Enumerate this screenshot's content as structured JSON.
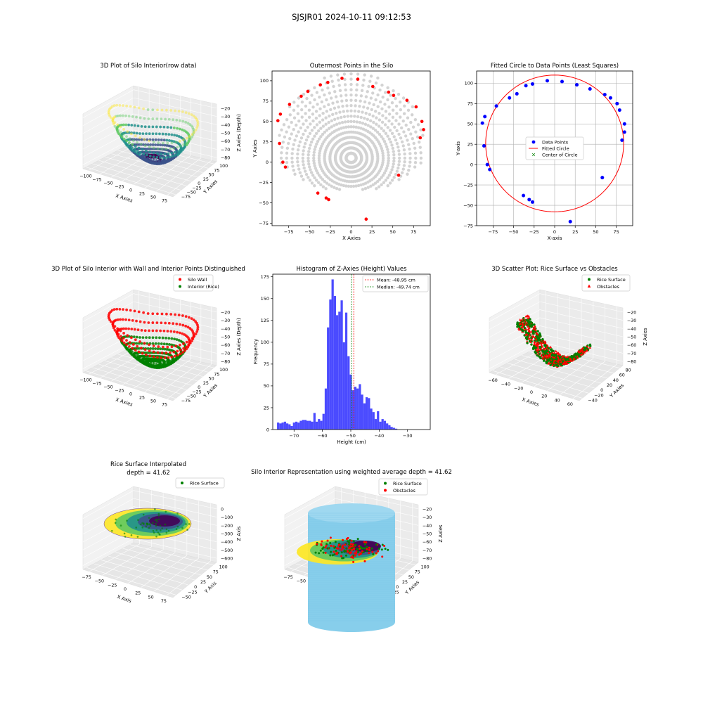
{
  "figure_title": "SJSJR01 2024-10-11 09:12:53",
  "colors": {
    "silo_wall": "#ff0000",
    "rice": "#008000",
    "data_points": "#0000ff",
    "interior_gray": "#d3d3d3",
    "silo_body": "#87ceeb",
    "hist_bar": "#4b4bff"
  },
  "chart_data": [
    {
      "id": "p1",
      "type": "scatter3d",
      "title": "3D Plot of Silo Interior(row data)",
      "xlabel": "X Axies",
      "ylabel": "Y Axies",
      "zlabel": "Z Axies (Depth)",
      "xticks": [
        "−100",
        "−75",
        "−50",
        "−25",
        "0",
        "25",
        "50",
        "75"
      ],
      "yticks": [
        "−75",
        "−50",
        "−25",
        "0",
        "25",
        "50",
        "75",
        "100"
      ],
      "zticks": [
        "−20",
        "−30",
        "−40",
        "−50",
        "−60",
        "−70",
        "−80"
      ]
    },
    {
      "id": "p2",
      "type": "scatter",
      "title": "Outermost Points in the Silo",
      "xlabel": "X Axies",
      "ylabel": "Y Axies",
      "xlim": [
        -95,
        95
      ],
      "ylim": [
        -78,
        112
      ],
      "xticks": [
        -75,
        -50,
        -25,
        0,
        25,
        50,
        75
      ],
      "yticks": [
        -75,
        -50,
        -25,
        0,
        25,
        50,
        75,
        100
      ],
      "outer_points": [
        [
          -88,
          51
        ],
        [
          -85,
          59
        ],
        [
          -86,
          23
        ],
        [
          -82,
          0
        ],
        [
          -79,
          -6
        ],
        [
          -74,
          71
        ],
        [
          -60,
          81
        ],
        [
          -52,
          87
        ],
        [
          -37,
          95
        ],
        [
          -28,
          98
        ],
        [
          -11,
          103
        ],
        [
          8,
          102
        ],
        [
          26,
          93
        ],
        [
          45,
          86
        ],
        [
          51,
          82
        ],
        [
          67,
          76
        ],
        [
          78,
          68
        ],
        [
          85,
          50
        ],
        [
          87,
          40
        ],
        [
          83,
          30
        ],
        [
          57,
          -16
        ],
        [
          18,
          -70
        ],
        [
          -30,
          -44
        ],
        [
          -27,
          -46
        ],
        [
          -40,
          -38
        ]
      ]
    },
    {
      "id": "p3",
      "type": "scatter",
      "title": "Fitted Circle to Data Points (Least Squares)",
      "xlabel": "X-axis",
      "ylabel": "Y-axis",
      "xlim": [
        -95,
        95
      ],
      "ylim": [
        -75,
        115
      ],
      "xticks": [
        -75,
        -50,
        -25,
        0,
        25,
        50,
        75
      ],
      "yticks": [
        -75,
        -50,
        -25,
        0,
        25,
        50,
        75,
        100
      ],
      "points": [
        [
          -88,
          51
        ],
        [
          -85,
          59
        ],
        [
          -86,
          23
        ],
        [
          -82,
          0
        ],
        [
          -79,
          -6
        ],
        [
          -71,
          72
        ],
        [
          -55,
          82
        ],
        [
          -46,
          87
        ],
        [
          -35,
          97
        ],
        [
          -27,
          99
        ],
        [
          -9,
          103
        ],
        [
          9,
          102
        ],
        [
          27,
          98
        ],
        [
          43,
          93
        ],
        [
          61,
          86
        ],
        [
          68,
          82
        ],
        [
          76,
          75
        ],
        [
          79,
          67
        ],
        [
          85,
          50
        ],
        [
          85,
          40
        ],
        [
          82,
          30
        ],
        [
          58,
          -16
        ],
        [
          19,
          -70
        ],
        [
          -38,
          -38
        ],
        [
          -31,
          -43
        ],
        [
          -27,
          -46
        ]
      ],
      "circle": {
        "cx": 0,
        "cy": 26,
        "r": 84
      },
      "legend": [
        "Data Points",
        "Fitted Circle",
        "Center of Circle"
      ]
    },
    {
      "id": "p4",
      "type": "scatter3d",
      "title": "3D Plot of Silo Interior with Wall and Interior Points Distinguished",
      "xlabel": "X Axies",
      "ylabel": "Y Axies",
      "zlabel": "Z Axies (Depth)",
      "xticks": [
        "−100",
        "−75",
        "−50",
        "−25",
        "0",
        "25",
        "50",
        "75"
      ],
      "yticks": [
        "−75",
        "−50",
        "−25",
        "0",
        "25",
        "50",
        "75",
        "100"
      ],
      "zticks": [
        "−20",
        "−30",
        "−40",
        "−50",
        "−60",
        "−70",
        "−80"
      ],
      "legend": [
        "Silo Wall",
        "Interior (Rice)"
      ]
    },
    {
      "id": "p5",
      "type": "bar",
      "title": "Histogram of Z-Axies (Height) Values",
      "xlabel": "Height (cm)",
      "ylabel": "Frequency",
      "xlim": [
        -77.5,
        -22
      ],
      "ylim": [
        0,
        178
      ],
      "xticks": [
        -70,
        -60,
        -50,
        -40,
        -30
      ],
      "yticks": [
        0,
        25,
        50,
        75,
        100,
        125,
        150,
        175
      ],
      "bin_start": -76,
      "bin_width": 0.8,
      "values": [
        8,
        7,
        8,
        9,
        7,
        6,
        4,
        8,
        9,
        8,
        10,
        11,
        11,
        10,
        10,
        9,
        19,
        9,
        12,
        10,
        18,
        47,
        117,
        149,
        172,
        153,
        131,
        135,
        148,
        100,
        134,
        84,
        63,
        45,
        49,
        47,
        52,
        40,
        30,
        37,
        36,
        24,
        20,
        12,
        21,
        9,
        12,
        10,
        7,
        5,
        3,
        2,
        1
      ],
      "mean": -48.95,
      "median": -49.74,
      "legend": [
        "Mean: -48.95 cm",
        "Median: -49.74 cm"
      ]
    },
    {
      "id": "p6",
      "type": "scatter3d",
      "title": "3D Scatter Plot: Rice Surface vs Obstacles",
      "xlabel": "X Axies",
      "ylabel": "Y Axies",
      "zlabel": "Z Axies",
      "xticks": [
        "−60",
        "−40",
        "−20",
        "0",
        "20",
        "40",
        "60"
      ],
      "yticks": [
        "−40",
        "−20",
        "0",
        "20",
        "40",
        "60",
        "80"
      ],
      "zticks": [
        "−20",
        "−30",
        "−40",
        "−50",
        "−60",
        "−70",
        "−80"
      ],
      "legend": [
        "Rice Surface",
        "Obstacles"
      ]
    },
    {
      "id": "p7",
      "type": "surface3d",
      "title": "Rice Surface Interpolated",
      "subtitle": "depth = 41.62",
      "xlabel": "X Axis",
      "ylabel": "Y Axis",
      "zlabel": "Z Axis",
      "xticks": [
        "−75",
        "−50",
        "−25",
        "0",
        "25",
        "50",
        "75"
      ],
      "yticks": [
        "−50",
        "−25",
        "0",
        "25",
        "50",
        "75",
        "100"
      ],
      "zticks": [
        "0",
        "−100",
        "−200",
        "−300",
        "−400",
        "−500",
        "−600"
      ],
      "legend": [
        "Rice Surface"
      ]
    },
    {
      "id": "p8",
      "type": "surface3d",
      "title": "Silo Interior Representation using weighted average depth = 41.62",
      "xlabel": "X Axies",
      "ylabel": "Y Axies",
      "zlabel": "Z Axies",
      "xticks": [
        "−75",
        "−50",
        "−25",
        "0",
        "25",
        "50",
        "75"
      ],
      "yticks": [
        "−50",
        "−25",
        "0",
        "25",
        "50",
        "75",
        "100"
      ],
      "zticks": [
        "−20",
        "−30",
        "−40",
        "−50",
        "−60",
        "−70",
        "−80"
      ],
      "legend": [
        "Rice Surface",
        "Obstacles"
      ]
    }
  ]
}
